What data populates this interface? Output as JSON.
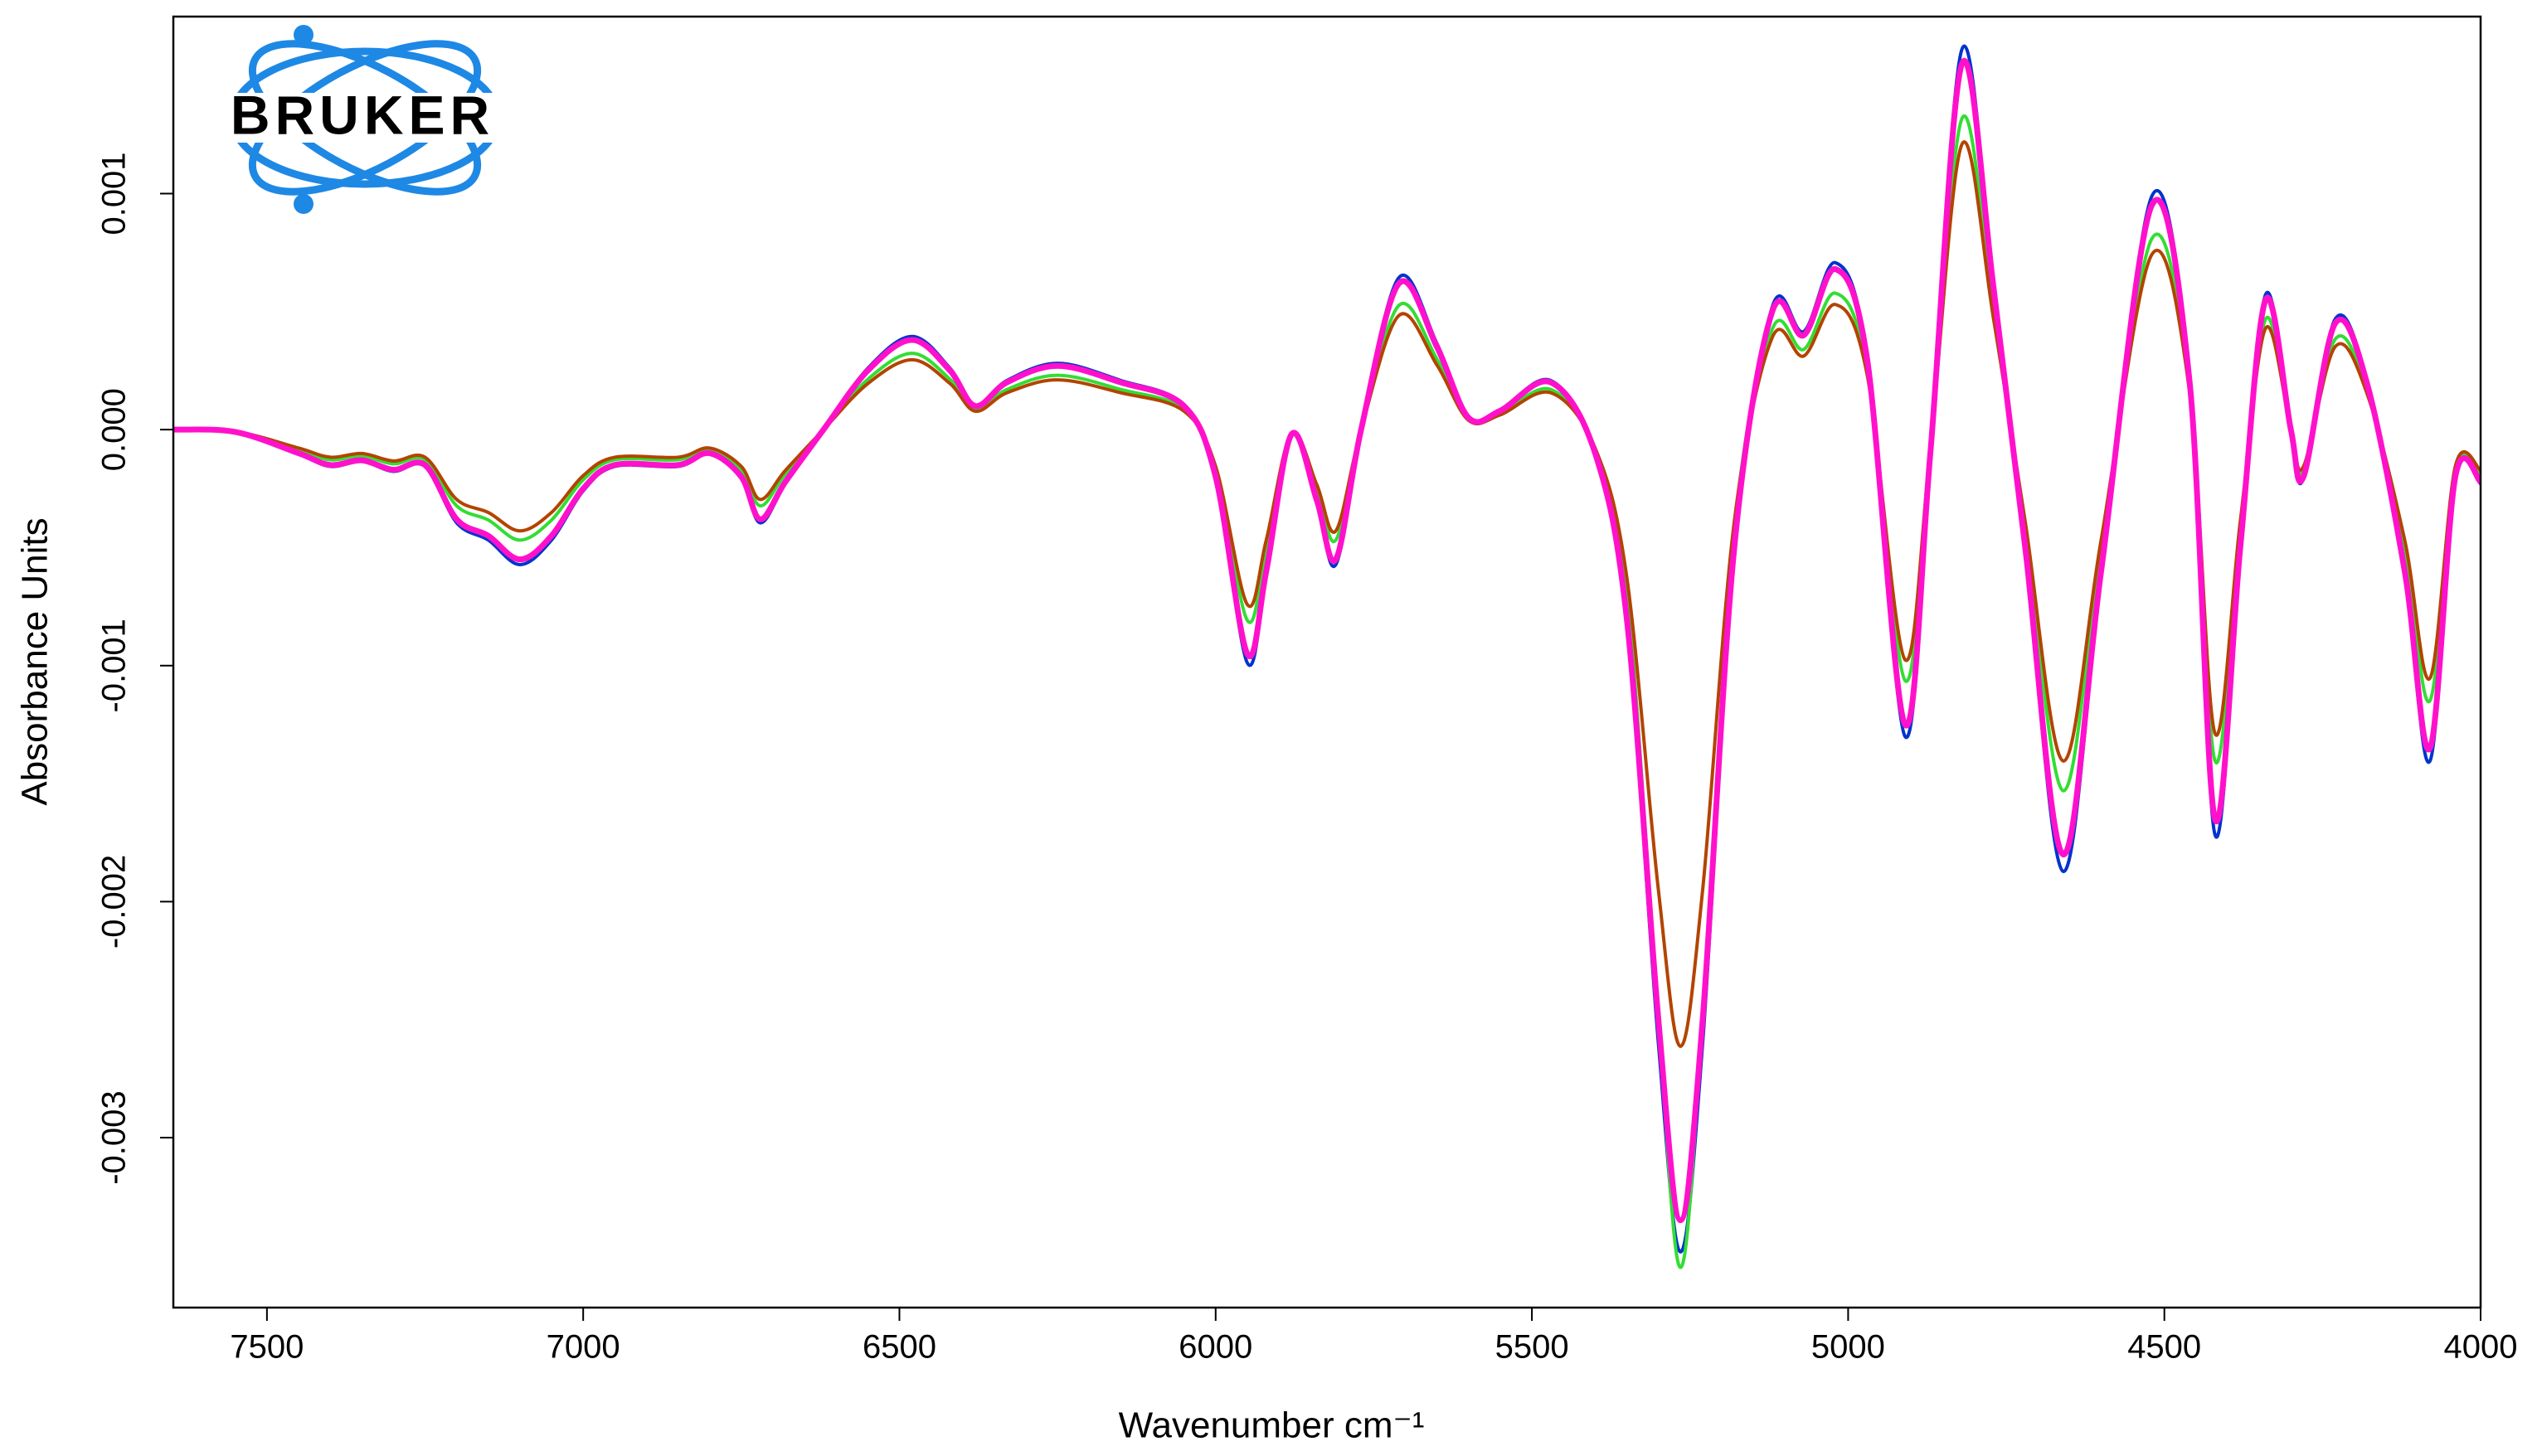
{
  "chart_data": {
    "type": "line",
    "logo_text": "BRUKER",
    "x_label": "Wavenumber cm⁻¹",
    "y_label": "Absorbance Units",
    "xlim": [
      7648,
      4000
    ],
    "xticks": [
      7500,
      7000,
      6500,
      6000,
      5500,
      5000,
      4500,
      4000
    ],
    "ylim": [
      -0.00372,
      0.00175
    ],
    "yticks": [
      -0.003,
      -0.002,
      -0.001,
      {
        "value": 0,
        "label": "0.000"
      },
      0.001
    ],
    "x": [
      7650,
      7550,
      7450,
      7400,
      7350,
      7300,
      7250,
      7200,
      7150,
      7100,
      7050,
      7000,
      6950,
      6850,
      6800,
      6750,
      6720,
      6680,
      6620,
      6550,
      6480,
      6420,
      6380,
      6330,
      6250,
      6150,
      6050,
      6000,
      5950,
      5920,
      5880,
      5840,
      5810,
      5770,
      5710,
      5650,
      5600,
      5550,
      5470,
      5400,
      5350,
      5300,
      5265,
      5230,
      5180,
      5120,
      5070,
      5020,
      4970,
      4910,
      4870,
      4820,
      4770,
      4720,
      4660,
      4600,
      4520,
      4460,
      4420,
      4380,
      4340,
      4300,
      4280,
      4230,
      4180,
      4120,
      4080,
      4040,
      4000
    ],
    "series": [
      {
        "color": "#0033cc",
        "values": [
          0,
          -1.04e-05,
          -0.000104,
          -0.000156,
          -0.000135,
          -0.000177,
          -0.000156,
          -0.000395,
          -0.000468,
          -0.000572,
          -0.000468,
          -0.00026,
          -0.000156,
          -0.000156,
          -0.000104,
          -0.000208,
          -0.000395,
          -0.000229,
          0,
          0.00026,
          0.000395,
          0.00026,
          0.000104,
          0.000208,
          0.000281,
          0.000208,
          0.000104,
          -0.000208,
          -0.000988,
          -0.000624,
          -2.08e-05,
          -0.000312,
          -0.000572,
          0,
          0.000645,
          0.000364,
          5.2e-05,
          8.32e-05,
          0.000208,
          -0.000104,
          -0.000832,
          -0.0026,
          -0.003484,
          -0.0026,
          -0.00052,
          0.00052,
          0.000416,
          0.000707,
          0.000312,
          -0.0013,
          -0.000104,
          0.001612,
          0.000624,
          -0.00052,
          -0.001872,
          -0.000624,
          0.000988,
          0.000208,
          -0.001716,
          -0.00052,
          0.000572,
          0,
          -0.000208,
          0.000468,
          0.000208,
          -0.000624,
          -0.001404,
          -0.000208,
          -0.000229
        ]
      },
      {
        "color": "#33dd33",
        "values": [
          0,
          -8.5e-06,
          -8.5e-05,
          -0.000128,
          -0.000111,
          -0.000145,
          -0.000128,
          -0.000323,
          -0.000383,
          -0.000468,
          -0.000383,
          -0.000213,
          -0.000128,
          -0.000128,
          -8.5e-05,
          -0.00017,
          -0.000323,
          -0.000187,
          0,
          0.000213,
          0.000323,
          0.000213,
          8.5e-05,
          0.00017,
          0.00023,
          0.00017,
          8.5e-05,
          -0.00017,
          -0.000808,
          -0.00051,
          -1.7e-05,
          -0.000255,
          -0.000468,
          0,
          0.000527,
          0.000298,
          4.25e-05,
          6.8e-05,
          0.00017,
          -8.5e-05,
          -0.00068,
          -0.0025,
          -0.00355,
          -0.0025,
          -0.000425,
          0.000425,
          0.00034,
          0.000578,
          0.000255,
          -0.001063,
          -8.5e-05,
          0.001318,
          0.00051,
          -0.000425,
          -0.00153,
          -0.00051,
          0.000808,
          0.00017,
          -0.001403,
          -0.000425,
          0.000468,
          0,
          -0.00017,
          0.000383,
          0.00017,
          -0.00051,
          -0.001148,
          -0.00017,
          -0.000187
        ]
      },
      {
        "color": "#b34400",
        "values": [
          0,
          -7.8e-06,
          -7.8e-05,
          -0.000117,
          -0.000101,
          -0.000133,
          -0.000117,
          -0.000296,
          -0.000351,
          -0.000429,
          -0.000351,
          -0.000195,
          -0.000117,
          -0.000117,
          -7.8e-05,
          -0.000156,
          -0.000296,
          -0.000172,
          0,
          0.000195,
          0.000296,
          0.000195,
          7.8e-05,
          0.000156,
          0.000211,
          0.000156,
          7.8e-05,
          -0.000156,
          -0.000741,
          -0.000468,
          -1.56e-05,
          -0.000234,
          -0.000429,
          0,
          0.000484,
          0.000273,
          3.9e-05,
          6.24e-05,
          0.000156,
          -7.8e-05,
          -0.000624,
          -0.00195,
          -0.002613,
          -0.00195,
          -0.00039,
          0.00039,
          0.000312,
          0.00053,
          0.000234,
          -0.000975,
          -7.8e-05,
          0.001209,
          0.000468,
          -0.00039,
          -0.001404,
          -0.000468,
          0.000741,
          0.000156,
          -0.001287,
          -0.00039,
          0.000429,
          0,
          -0.000156,
          0.000351,
          0.000156,
          -0.000468,
          -0.001053,
          -0.000156,
          -0.000172
        ]
      },
      {
        "color": "#ff11cc",
        "values": [
          0,
          -1e-05,
          -0.0001,
          -0.00015,
          -0.00013,
          -0.00017,
          -0.00015,
          -0.00038,
          -0.00045,
          -0.00055,
          -0.00045,
          -0.00025,
          -0.00015,
          -0.00015,
          -0.0001,
          -0.0002,
          -0.00038,
          -0.00022,
          0,
          0.00025,
          0.00038,
          0.00025,
          0.0001,
          0.0002,
          0.00027,
          0.0002,
          0.0001,
          -0.0002,
          -0.00095,
          -0.0006,
          -2e-05,
          -0.0003,
          -0.00055,
          0,
          0.00062,
          0.00035,
          5e-05,
          8e-05,
          0.0002,
          -0.0001,
          -0.0008,
          -0.0025,
          -0.00335,
          -0.0025,
          -0.0005,
          0.0005,
          0.0004,
          0.00068,
          0.0003,
          -0.00125,
          -0.0001,
          0.00155,
          0.0006,
          -0.0005,
          -0.0018,
          -0.0006,
          0.00095,
          0.0002,
          -0.00165,
          -0.0005,
          0.00055,
          0,
          -0.0002,
          0.00045,
          0.0002,
          -0.0006,
          -0.00135,
          -0.0002,
          -0.00022
        ]
      }
    ]
  }
}
